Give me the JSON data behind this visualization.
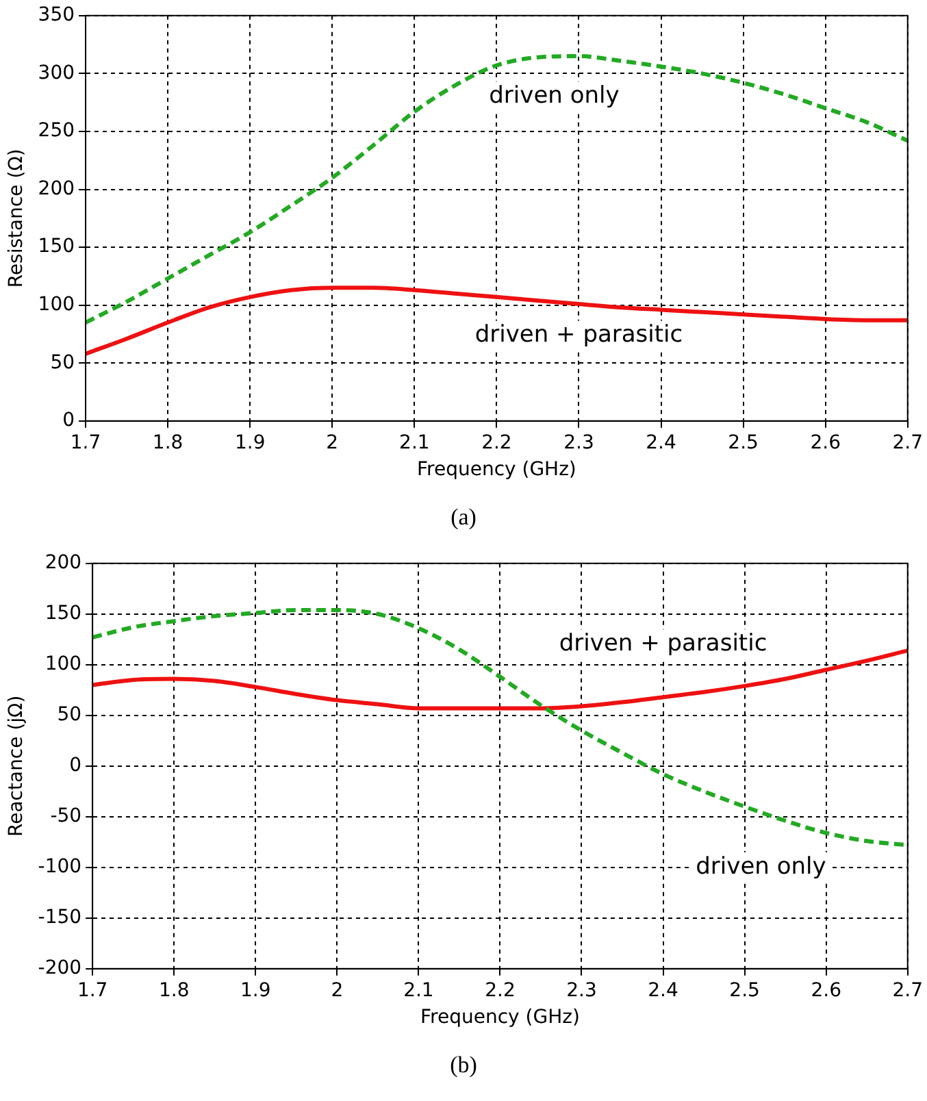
{
  "chart_data": [
    {
      "type": "line",
      "xlabel": "Frequency (GHz)",
      "ylabel": "Resistance (Ω)",
      "annotations": [
        "(a)"
      ],
      "x": [
        1.7,
        1.75,
        1.8,
        1.85,
        1.9,
        1.95,
        2.0,
        2.05,
        2.1,
        2.15,
        2.2,
        2.25,
        2.3,
        2.35,
        2.4,
        2.45,
        2.5,
        2.55,
        2.6,
        2.65,
        2.7
      ],
      "series": [
        {
          "name": "driven only",
          "color": "#22aa22",
          "line_style": "dashed",
          "values": [
            85,
            103,
            123,
            143,
            163,
            186,
            210,
            238,
            267,
            290,
            307,
            314,
            315,
            311,
            306,
            300,
            292,
            282,
            270,
            258,
            242
          ]
        },
        {
          "name": "driven + parasitic",
          "color": "#ee1111",
          "line_style": "solid",
          "values": [
            58,
            71,
            85,
            98,
            107,
            113,
            115,
            115,
            113,
            110,
            107,
            104,
            101,
            98,
            96,
            94,
            92,
            90,
            88,
            87,
            87
          ]
        }
      ],
      "xlim": [
        1.7,
        2.7
      ],
      "xticks": [
        1.7,
        1.8,
        1.9,
        2,
        2.1,
        2.2,
        2.3,
        2.4,
        2.5,
        2.6,
        2.7
      ],
      "ylim": [
        0,
        350
      ],
      "yticks": [
        0,
        50,
        100,
        150,
        200,
        250,
        300,
        350
      ],
      "grid": true,
      "legend": false,
      "marker": "none"
    },
    {
      "type": "line",
      "xlabel": "Frequency (GHz)",
      "ylabel": "Reactance (jΩ)",
      "annotations": [
        "(b)"
      ],
      "x": [
        1.7,
        1.75,
        1.8,
        1.85,
        1.9,
        1.95,
        2.0,
        2.05,
        2.1,
        2.15,
        2.2,
        2.25,
        2.3,
        2.35,
        2.4,
        2.45,
        2.5,
        2.55,
        2.6,
        2.65,
        2.7
      ],
      "series": [
        {
          "name": "driven only",
          "color": "#22aa22",
          "line_style": "dashed",
          "values": [
            127,
            137,
            143,
            148,
            151,
            154,
            154,
            150,
            136,
            115,
            88,
            60,
            35,
            13,
            -8,
            -25,
            -40,
            -54,
            -66,
            -74,
            -78
          ]
        },
        {
          "name": "driven + parasitic",
          "color": "#ee1111",
          "line_style": "solid",
          "values": [
            80,
            85,
            86,
            84,
            78,
            71,
            65,
            61,
            57,
            57,
            57,
            57,
            59,
            63,
            68,
            73,
            79,
            86,
            95,
            104,
            114
          ]
        }
      ],
      "xlim": [
        1.7,
        2.7
      ],
      "xticks": [
        1.7,
        1.8,
        1.9,
        2,
        2.1,
        2.2,
        2.3,
        2.4,
        2.5,
        2.6,
        2.7
      ],
      "ylim": [
        -200,
        200
      ],
      "yticks": [
        -200,
        -150,
        -100,
        -50,
        0,
        50,
        100,
        150,
        200
      ],
      "grid": true,
      "legend": false,
      "marker": "none"
    }
  ]
}
